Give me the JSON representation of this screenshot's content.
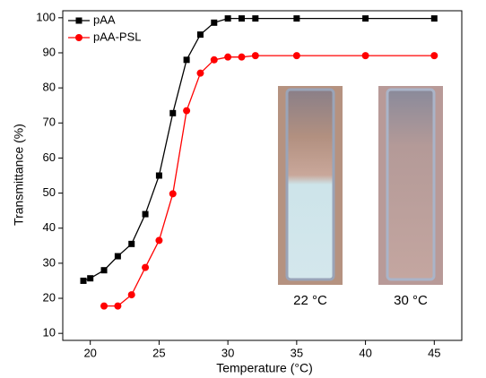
{
  "chart_data": {
    "type": "line",
    "x_label": "Temperature (°C)",
    "y_label": "Transmittance (%)",
    "xlim": [
      18,
      47
    ],
    "xticks": [
      20,
      25,
      30,
      35,
      40,
      45
    ],
    "ylim": [
      8,
      102
    ],
    "yticks": [
      10,
      20,
      30,
      40,
      50,
      60,
      70,
      80,
      90,
      100
    ],
    "legend": "upper left",
    "series": [
      {
        "name": "pAA",
        "color": "#000000",
        "marker": "square",
        "x": [
          19.5,
          20,
          21,
          22,
          23,
          24,
          25,
          26,
          27,
          28,
          29,
          30,
          31,
          32,
          35,
          40,
          45
        ],
        "values": [
          25,
          25.7,
          28,
          32,
          35.5,
          44,
          55,
          72.8,
          88,
          95.2,
          98.6,
          99.8,
          99.8,
          99.8,
          99.8,
          99.8,
          99.8
        ]
      },
      {
        "name": "pAA-PSL",
        "color": "#ff0000",
        "marker": "circle",
        "x": [
          21,
          22,
          23,
          24,
          25,
          26,
          27,
          28,
          29,
          30,
          31,
          32,
          35,
          40,
          45
        ],
        "values": [
          17.8,
          17.8,
          21,
          28.8,
          36.5,
          49.8,
          73.5,
          84.2,
          88,
          88.8,
          88.8,
          89.2,
          89.2,
          89.2,
          89.2
        ]
      }
    ],
    "annotations": [
      "22 °C",
      "30 °C"
    ]
  }
}
